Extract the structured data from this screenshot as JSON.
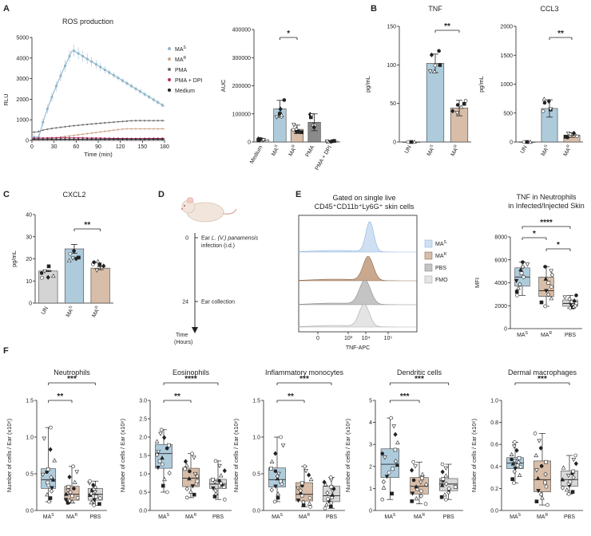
{
  "colors": {
    "mas_fill": "#aecbdc",
    "mas_line": "#8fb6cc",
    "mar_fill": "#d8bda8",
    "mar_line": "#c9a88e",
    "pma": "#707070",
    "pma_fill": "#8a8a8a",
    "dpi": "#b0306a",
    "medium": "#222222",
    "un_fill": "#d4d4d4",
    "pbs_fill": "#d8d8d8"
  },
  "panel_labels": [
    "A",
    "B",
    "C",
    "D",
    "E",
    "F"
  ],
  "chart_data": [
    {
      "id": "ros_curve",
      "type": "line",
      "title": "ROS production",
      "xlabel": "Time (min)",
      "ylabel": "RLU",
      "xlim": [
        0,
        180
      ],
      "ylim": [
        0,
        5000
      ],
      "xticks": [
        0,
        30,
        60,
        90,
        120,
        150,
        180
      ],
      "yticks": [
        0,
        1000,
        2000,
        3000,
        4000,
        5000
      ],
      "legend": [
        "MAS",
        "MAR",
        "PMA",
        "PMA + DPI",
        "Medium"
      ],
      "series": [
        {
          "name": "MAS",
          "peak_time": 55,
          "peak_value": 4400,
          "end_value": 1650
        },
        {
          "name": "MAR",
          "peak_time": 140,
          "peak_value": 560,
          "end_value": 520
        },
        {
          "name": "PMA",
          "peak_time": 150,
          "peak_value": 960,
          "end_value": 860
        },
        {
          "name": "PMA + DPI",
          "peak_time": 90,
          "peak_value": 130,
          "end_value": 120
        },
        {
          "name": "Medium",
          "peak_time": 90,
          "peak_value": 60,
          "end_value": 60
        }
      ]
    },
    {
      "id": "ros_auc",
      "type": "bar",
      "ylabel": "AUC",
      "ylim": [
        0,
        400000
      ],
      "yticks": [
        "0",
        "100000",
        "200000",
        "300000",
        "400000"
      ],
      "categories": [
        "Medium",
        "MAS",
        "MAR",
        "PMA",
        "PMA + DPI"
      ],
      "values": [
        8000,
        118000,
        45000,
        70000,
        3000
      ],
      "errors": [
        4000,
        30000,
        15000,
        30000,
        2000
      ],
      "significance": [
        {
          "from": 1,
          "to": 2,
          "label": "*"
        }
      ]
    },
    {
      "id": "tnf_b",
      "type": "bar",
      "title": "TNF",
      "ylabel": "pg/mL",
      "ylim": [
        0,
        150
      ],
      "yticks": [
        "0",
        "50",
        "100",
        "150"
      ],
      "categories": [
        "UN",
        "MAS",
        "MAR"
      ],
      "values": [
        0,
        102,
        44
      ],
      "errors": [
        0,
        12,
        10
      ],
      "significance": [
        {
          "from": 1,
          "to": 2,
          "label": "**"
        }
      ]
    },
    {
      "id": "ccl3_b",
      "type": "bar",
      "title": "CCL3",
      "ylabel": "pg/mL",
      "ylim": [
        0,
        2000
      ],
      "yticks": [
        "0",
        "500",
        "1000",
        "1500",
        "2000"
      ],
      "categories": [
        "UN",
        "MAS",
        "MAR"
      ],
      "values": [
        0,
        580,
        120
      ],
      "errors": [
        0,
        150,
        40
      ],
      "significance": [
        {
          "from": 1,
          "to": 2,
          "label": "**"
        }
      ]
    },
    {
      "id": "cxcl2_c",
      "type": "bar",
      "title": "CXCL2",
      "ylabel": "pg/mL",
      "ylim": [
        0,
        40
      ],
      "yticks": [
        "0",
        "10",
        "20",
        "30",
        "40"
      ],
      "categories": [
        "UN",
        "MAS",
        "MAR"
      ],
      "values": [
        14.5,
        24.5,
        15.8
      ],
      "errors": [
        0.3,
        2.0,
        0.7
      ],
      "significance": [
        {
          "from": 1,
          "to": 2,
          "label": "**"
        }
      ]
    },
    {
      "id": "tnf_mfi_e",
      "type": "box",
      "title": "TNF in Neutrophils",
      "subtitle": "in Infected/Injected Skin",
      "ylabel": "MFI",
      "ylim": [
        0,
        8000
      ],
      "yticks": [
        "0",
        "2000",
        "4000",
        "6000",
        "8000"
      ],
      "categories": [
        "MAS",
        "MAR",
        "PBS"
      ],
      "boxes": [
        {
          "min": 2900,
          "q1": 3700,
          "median": 4500,
          "q3": 5300,
          "max": 5800
        },
        {
          "min": 1950,
          "q1": 2800,
          "median": 3300,
          "q3": 4500,
          "max": 5400
        },
        {
          "min": 1800,
          "q1": 1950,
          "median": 2200,
          "q3": 2500,
          "max": 2900
        }
      ],
      "significance": [
        {
          "from": 0,
          "to": 2,
          "label": "****"
        },
        {
          "from": 0,
          "to": 1,
          "label": "*"
        },
        {
          "from": 1,
          "to": 2,
          "label": "*"
        }
      ]
    },
    {
      "id": "f_neutrophils",
      "type": "box",
      "title": "Neutrophils",
      "ylabel": "Number of cells / Ear (x10⁶)",
      "ylim": [
        0,
        1.5
      ],
      "yticks": [
        "0.0",
        "0.5",
        "1.0",
        "1.5"
      ],
      "categories": [
        "MAS",
        "MAR",
        "PBS"
      ],
      "boxes": [
        {
          "min": 0.12,
          "q1": 0.3,
          "median": 0.42,
          "q3": 0.57,
          "max": 1.13
        },
        {
          "min": 0.1,
          "q1": 0.14,
          "median": 0.22,
          "q3": 0.33,
          "max": 0.6
        },
        {
          "min": 0.07,
          "q1": 0.14,
          "median": 0.22,
          "q3": 0.3,
          "max": 0.4
        }
      ],
      "significance": [
        {
          "from": 0,
          "to": 2,
          "label": "***"
        },
        {
          "from": 0,
          "to": 1,
          "label": "**"
        }
      ]
    },
    {
      "id": "f_eosinophils",
      "type": "box",
      "title": "Eosinophils",
      "ylabel": "Number of cells / Ear (x10⁶)",
      "ylim": [
        0,
        3.0
      ],
      "yticks": [
        "0.0",
        "0.5",
        "1.0",
        "1.5",
        "2.0",
        "2.5",
        "3.0"
      ],
      "categories": [
        "MAS",
        "MAR",
        "PBS"
      ],
      "boxes": [
        {
          "min": 0.5,
          "q1": 1.15,
          "median": 1.55,
          "q3": 1.8,
          "max": 2.2
        },
        {
          "min": 0.35,
          "q1": 0.65,
          "median": 0.88,
          "q3": 1.15,
          "max": 1.55
        },
        {
          "min": 0.3,
          "q1": 0.6,
          "median": 0.72,
          "q3": 0.85,
          "max": 1.35
        }
      ],
      "significance": [
        {
          "from": 0,
          "to": 2,
          "label": "****"
        },
        {
          "from": 0,
          "to": 1,
          "label": "**"
        }
      ]
    },
    {
      "id": "f_inflam_mono",
      "type": "box",
      "title": "Inflammatory monocytes",
      "ylabel": "Number of cells / Ear (x10⁶)",
      "ylim": [
        0,
        1.5
      ],
      "yticks": [
        "0.0",
        "0.5",
        "1.0",
        "1.5"
      ],
      "categories": [
        "MAS",
        "MAR",
        "PBS"
      ],
      "boxes": [
        {
          "min": 0.12,
          "q1": 0.32,
          "median": 0.42,
          "q3": 0.58,
          "max": 1.0
        },
        {
          "min": 0.05,
          "q1": 0.13,
          "median": 0.22,
          "q3": 0.38,
          "max": 0.6
        },
        {
          "min": 0.03,
          "q1": 0.12,
          "median": 0.2,
          "q3": 0.33,
          "max": 0.45
        }
      ],
      "significance": [
        {
          "from": 0,
          "to": 2,
          "label": "***"
        },
        {
          "from": 0,
          "to": 1,
          "label": "**"
        }
      ]
    },
    {
      "id": "f_dendritic",
      "type": "box",
      "title": "Dendritic cells",
      "ylabel": "Number of cells / Ear (x10⁶)",
      "ylim": [
        0,
        5
      ],
      "yticks": [
        "0",
        "1",
        "2",
        "3",
        "4",
        "5"
      ],
      "categories": [
        "MAS",
        "MAR",
        "PBS"
      ],
      "boxes": [
        {
          "min": 0.5,
          "q1": 1.5,
          "median": 2.1,
          "q3": 2.8,
          "max": 4.2
        },
        {
          "min": 0.3,
          "q1": 0.75,
          "median": 1.1,
          "q3": 1.5,
          "max": 2.2
        },
        {
          "min": 0.5,
          "q1": 0.9,
          "median": 1.2,
          "q3": 1.45,
          "max": 2.1
        }
      ],
      "significance": [
        {
          "from": 0,
          "to": 2,
          "label": "***"
        },
        {
          "from": 0,
          "to": 1,
          "label": "***"
        }
      ]
    },
    {
      "id": "f_dermal_macro",
      "type": "box",
      "title": "Dermal macrophages",
      "ylabel": "Number of cells / Ear (x10⁶)",
      "ylim": [
        0,
        1.0
      ],
      "yticks": [
        "0.0",
        "0.2",
        "0.4",
        "0.6",
        "0.8",
        "1.0"
      ],
      "categories": [
        "MAS",
        "MAR",
        "PBS"
      ],
      "boxes": [
        {
          "min": 0.25,
          "q1": 0.38,
          "median": 0.43,
          "q3": 0.48,
          "max": 0.62
        },
        {
          "min": 0.05,
          "q1": 0.17,
          "median": 0.28,
          "q3": 0.45,
          "max": 0.7
        },
        {
          "min": 0.15,
          "q1": 0.22,
          "median": 0.28,
          "q3": 0.36,
          "max": 0.5
        }
      ],
      "significance": [
        {
          "from": 0,
          "to": 2,
          "label": "***"
        }
      ]
    }
  ],
  "timeline": {
    "t0_label": "0",
    "t0_text_pre": "Ear ",
    "t0_text_italic": "L. (V.) panamensis",
    "t0_text_line2": "infection (i.d.)",
    "t24_label": "24",
    "t24_text": "Ear collection",
    "axis_label_1": "Time",
    "axis_label_2": "(Hours)"
  },
  "flow": {
    "title_line1": "Gated on single live",
    "title_line2": "CD45⁺CD11b⁺Ly6G⁺ skin cells",
    "xlabel": "TNF-APC",
    "xticks": [
      "0",
      "10³",
      "10⁴",
      "10⁵"
    ],
    "legend": [
      "MAS",
      "MAR",
      "PBS",
      "FMO"
    ]
  },
  "group_label_base": {
    "MAS": "MA",
    "MAR": "MA",
    "UN": "UN",
    "PBS": "PBS"
  },
  "group_label_sup": {
    "MAS": "S",
    "MAR": "R"
  }
}
